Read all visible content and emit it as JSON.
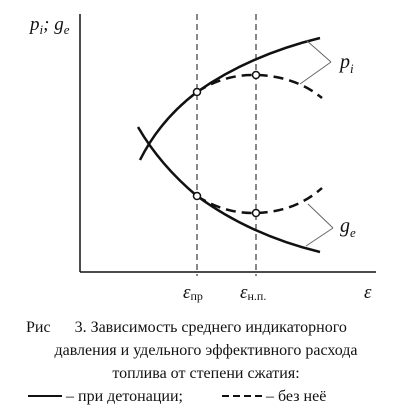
{
  "y_axis_label": {
    "parts": [
      "p",
      "i",
      "; g",
      "e"
    ]
  },
  "markers": [
    {
      "symbol": "ε",
      "sub": "пр"
    },
    {
      "symbol": "ε",
      "sub": "н.п."
    }
  ],
  "x_axis_label": "ε",
  "curve_labels": {
    "pi": {
      "base": "p",
      "sub": "i"
    },
    "ge": {
      "base": "g",
      "sub": "e"
    }
  },
  "caption": {
    "lines": [
      "Рис      3. Зависимость среднего индикаторного",
      "давления и удельного эффективного расхода",
      "топлива от степени сжатия:"
    ],
    "legend": {
      "solid": "– при детонации;",
      "dashed": "– без неё"
    }
  }
}
